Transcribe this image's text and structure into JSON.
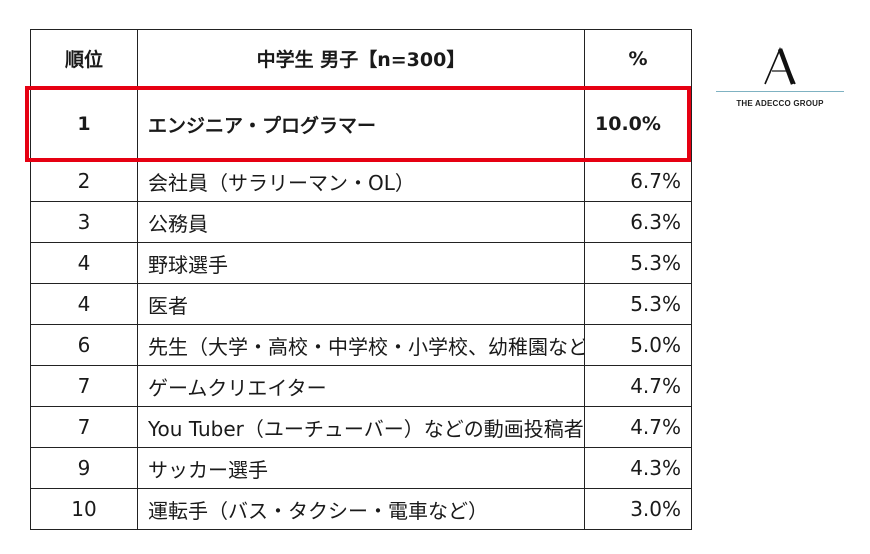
{
  "table": {
    "headers": {
      "rank": "順位",
      "job": "中学生 男子【n=300】",
      "percent": "%"
    },
    "rows": [
      {
        "rank": "1",
        "job": "エンジニア・プログラマー",
        "percent": "10.0%"
      },
      {
        "rank": "2",
        "job": "会社員（サラリーマン・OL）",
        "percent": "6.7%"
      },
      {
        "rank": "3",
        "job": "公務員",
        "percent": "6.3%"
      },
      {
        "rank": "4",
        "job": "野球選手",
        "percent": "5.3%"
      },
      {
        "rank": "4",
        "job": "医者",
        "percent": "5.3%"
      },
      {
        "rank": "6",
        "job": "先生（大学・高校・中学校・小学校、幼稚園など）",
        "percent": "5.0%"
      },
      {
        "rank": "7",
        "job": "ゲームクリエイター",
        "percent": "4.7%"
      },
      {
        "rank": "7",
        "job": "You Tuber（ユーチューバー）などの動画投稿者",
        "percent": "4.7%"
      },
      {
        "rank": "9",
        "job": "サッカー選手",
        "percent": "4.3%"
      },
      {
        "rank": "10",
        "job": "運転手（バス・タクシー・電車など）",
        "percent": "3.0%"
      }
    ]
  },
  "logo": {
    "text": "THE ADECCO GROUP",
    "icon": "adecco-a-logo-icon"
  },
  "colors": {
    "highlight": "#e60012",
    "logo_line": "#7fb2c2"
  }
}
